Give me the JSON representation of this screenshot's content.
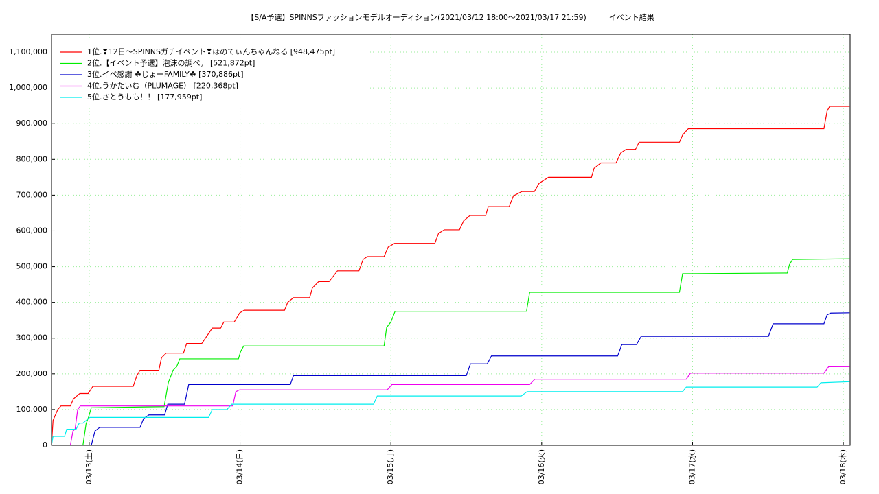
{
  "chart_data": {
    "type": "line",
    "title": "【S/A予選】SPINNSファッションモデルオーディション(2021/03/12 18:00〜2021/03/17 21:59)　　　イベント結果",
    "xlim": [
      "2021-03-12T18:00",
      "2021-03-18T01:05"
    ],
    "xticks": [
      {
        "value": "2021-03-13T00:00",
        "label": "03/13(土)"
      },
      {
        "value": "2021-03-14T00:00",
        "label": "03/14(日)"
      },
      {
        "value": "2021-03-15T00:00",
        "label": "03/15(月)"
      },
      {
        "value": "2021-03-16T00:00",
        "label": "03/16(火)"
      },
      {
        "value": "2021-03-17T00:00",
        "label": "03/17(水)"
      },
      {
        "value": "2021-03-18T00:00",
        "label": "03/18(木)"
      }
    ],
    "ylim": [
      0,
      1150000
    ],
    "yticks": [
      0,
      {
        "value": 100000,
        "label": "100,000"
      },
      {
        "value": 200000,
        "label": "200,000"
      },
      {
        "value": 300000,
        "label": "300,000"
      },
      {
        "value": 400000,
        "label": "400,000"
      },
      {
        "value": 500000,
        "label": "500,000"
      },
      {
        "value": 600000,
        "label": "600,000"
      },
      {
        "value": 700000,
        "label": "700,000"
      },
      {
        "value": 800000,
        "label": "800,000"
      },
      {
        "value": 900000,
        "label": "900,000"
      },
      {
        "value": 1000000,
        "label": "1,000,000"
      },
      {
        "value": 1100000,
        "label": "1,100,000"
      }
    ],
    "grid": true,
    "legend": "upper left",
    "series": [
      {
        "name": "1位.❣12日〜SPINNSガチイベント❣ほのてぃんちゃんねる [948,475pt]",
        "color": "#ff0000",
        "x": [
          "2021-03-12T18:00",
          "2021-03-12T18:15",
          "2021-03-12T19:00",
          "2021-03-12T19:30",
          "2021-03-12T21:00",
          "2021-03-12T21:30",
          "2021-03-12T22:30",
          "2021-03-12T23:50",
          "2021-03-13T00:35",
          "2021-03-13T07:00",
          "2021-03-13T07:35",
          "2021-03-13T08:05",
          "2021-03-13T11:05",
          "2021-03-13T11:30",
          "2021-03-13T12:15",
          "2021-03-13T15:00",
          "2021-03-13T15:30",
          "2021-03-13T17:55",
          "2021-03-13T19:35",
          "2021-03-13T20:55",
          "2021-03-13T21:25",
          "2021-03-13T23:05",
          "2021-03-13T23:55",
          "2021-03-14T00:40",
          "2021-03-14T07:05",
          "2021-03-14T07:35",
          "2021-03-14T08:30",
          "2021-03-14T11:05",
          "2021-03-14T11:30",
          "2021-03-14T12:30",
          "2021-03-14T14:10",
          "2021-03-14T15:30",
          "2021-03-14T18:55",
          "2021-03-14T19:35",
          "2021-03-14T20:15",
          "2021-03-14T22:55",
          "2021-03-14T23:35",
          "2021-03-15T00:35",
          "2021-03-15T07:00",
          "2021-03-15T07:35",
          "2021-03-15T08:30",
          "2021-03-15T10:55",
          "2021-03-15T11:35",
          "2021-03-15T12:35",
          "2021-03-15T15:05",
          "2021-03-15T15:30",
          "2021-03-15T18:50",
          "2021-03-15T19:30",
          "2021-03-15T20:50",
          "2021-03-15T22:50",
          "2021-03-15T23:35",
          "2021-03-16T01:05",
          "2021-03-16T07:55",
          "2021-03-16T08:20",
          "2021-03-16T09:25",
          "2021-03-16T11:50",
          "2021-03-16T12:35",
          "2021-03-16T13:25",
          "2021-03-16T14:55",
          "2021-03-16T15:30",
          "2021-03-16T21:55",
          "2021-03-16T22:25",
          "2021-03-16T23:20",
          "2021-03-17T20:55",
          "2021-03-17T21:25",
          "2021-03-17T21:50",
          "2021-03-18T01:00"
        ],
        "values": [
          0,
          70000,
          100000,
          110000,
          110000,
          130000,
          145000,
          145000,
          165000,
          165000,
          195000,
          210000,
          210000,
          245000,
          258000,
          258000,
          285000,
          285000,
          328000,
          328000,
          345000,
          345000,
          370000,
          378000,
          378000,
          400000,
          413000,
          413000,
          440000,
          458000,
          458000,
          488000,
          488000,
          520000,
          528000,
          528000,
          555000,
          565000,
          565000,
          593000,
          603000,
          603000,
          628000,
          643000,
          643000,
          668000,
          668000,
          698000,
          710000,
          710000,
          733000,
          750000,
          750000,
          775000,
          790000,
          790000,
          818000,
          828000,
          828000,
          848000,
          848000,
          868000,
          886000,
          886000,
          935000,
          948475,
          948475
        ]
      },
      {
        "name": "2位.【イベント予選】泡沫の調べ。 [521,872pt]",
        "color": "#00ee00",
        "x": [
          "2021-03-12T23:00",
          "2021-03-12T23:30",
          "2021-03-12T23:55",
          "2021-03-13T00:20",
          "2021-03-13T11:55",
          "2021-03-13T12:35",
          "2021-03-13T13:20",
          "2021-03-13T13:55",
          "2021-03-13T14:25",
          "2021-03-13T23:45",
          "2021-03-14T00:05",
          "2021-03-14T00:35",
          "2021-03-14T22:55",
          "2021-03-14T23:20",
          "2021-03-15T00:00",
          "2021-03-15T00:40",
          "2021-03-15T21:35",
          "2021-03-15T22:05",
          "2021-03-16T21:55",
          "2021-03-16T22:25",
          "2021-03-17T15:05",
          "2021-03-17T15:25",
          "2021-03-17T15:55",
          "2021-03-18T01:00"
        ],
        "values": [
          0,
          60000,
          80000,
          105000,
          108000,
          175000,
          210000,
          220000,
          242000,
          242000,
          262000,
          278000,
          278000,
          330000,
          345000,
          375000,
          375000,
          428000,
          428000,
          480000,
          482000,
          505000,
          520000,
          521872
        ]
      },
      {
        "name": "3位.イベ感謝 ☘じょーFAMILY☘ [370,886pt]",
        "color": "#0000cc",
        "x": [
          "2021-03-13T00:20",
          "2021-03-13T00:55",
          "2021-03-13T01:40",
          "2021-03-13T08:05",
          "2021-03-13T08:40",
          "2021-03-13T09:30",
          "2021-03-13T12:00",
          "2021-03-13T12:30",
          "2021-03-13T15:10",
          "2021-03-13T15:50",
          "2021-03-14T08:00",
          "2021-03-14T08:30",
          "2021-03-15T12:00",
          "2021-03-15T12:40",
          "2021-03-15T15:20",
          "2021-03-15T16:00",
          "2021-03-16T12:05",
          "2021-03-16T12:45",
          "2021-03-16T15:05",
          "2021-03-16T15:50",
          "2021-03-17T12:05",
          "2021-03-17T12:50",
          "2021-03-17T20:55",
          "2021-03-17T21:25",
          "2021-03-17T22:00",
          "2021-03-18T01:00"
        ],
        "values": [
          0,
          40000,
          50000,
          50000,
          75000,
          85000,
          85000,
          115000,
          115000,
          170000,
          170000,
          195000,
          195000,
          228000,
          228000,
          250000,
          250000,
          282000,
          282000,
          305000,
          305000,
          340000,
          340000,
          365000,
          370000,
          370886
        ]
      },
      {
        "name": "4位.うかたいむ（PLUMAGE） [220,368pt]",
        "color": "#ee00ee",
        "x": [
          "2021-03-12T21:00",
          "2021-03-12T21:25",
          "2021-03-12T21:45",
          "2021-03-12T22:10",
          "2021-03-12T22:35",
          "2021-03-13T22:50",
          "2021-03-13T23:20",
          "2021-03-13T23:55",
          "2021-03-14T23:25",
          "2021-03-15T00:10",
          "2021-03-15T22:05",
          "2021-03-15T22:55",
          "2021-03-16T23:00",
          "2021-03-16T23:40",
          "2021-03-17T20:55",
          "2021-03-17T21:40",
          "2021-03-18T01:00"
        ],
        "values": [
          0,
          40000,
          45000,
          100000,
          110000,
          110000,
          150000,
          155000,
          155000,
          170000,
          170000,
          185000,
          185000,
          202000,
          202000,
          220000,
          220368
        ]
      },
      {
        "name": "5位.さとうもも！！ [177,959pt]",
        "color": "#00eeee",
        "x": [
          "2021-03-12T18:00",
          "2021-03-12T18:15",
          "2021-03-12T20:05",
          "2021-03-12T20:25",
          "2021-03-12T21:55",
          "2021-03-12T22:25",
          "2021-03-12T23:00",
          "2021-03-13T00:05",
          "2021-03-13T19:00",
          "2021-03-13T19:35",
          "2021-03-13T21:55",
          "2021-03-13T22:40",
          "2021-03-14T21:15",
          "2021-03-14T21:50",
          "2021-03-15T20:45",
          "2021-03-15T21:40",
          "2021-03-16T22:25",
          "2021-03-16T23:00",
          "2021-03-17T19:50",
          "2021-03-17T20:25",
          "2021-03-18T01:00"
        ],
        "values": [
          0,
          25000,
          25000,
          45000,
          45000,
          62000,
          62000,
          78000,
          78000,
          100000,
          100000,
          115000,
          115000,
          138000,
          138000,
          150000,
          150000,
          163000,
          163000,
          175000,
          177959
        ]
      }
    ]
  }
}
